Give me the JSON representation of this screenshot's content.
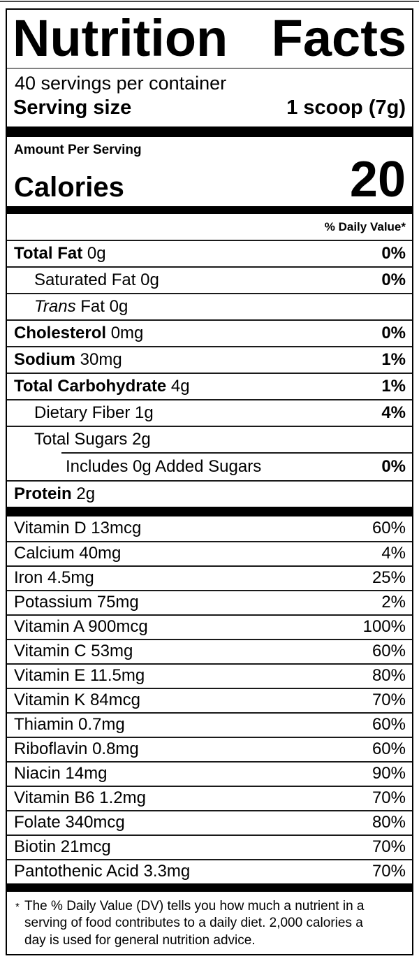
{
  "label": {
    "title": "Nutrition Facts",
    "servings_per_container": "40 servings per container",
    "serving_size": {
      "label": "Serving size",
      "value": "1 scoop (7g)"
    },
    "amount_per_serving": "Amount Per Serving",
    "calories": {
      "label": "Calories",
      "value": "20"
    },
    "daily_value_header": "% Daily Value*",
    "nutrient_rows": [
      {
        "name": "Total Fat",
        "amount": "0g",
        "dv": "0%"
      },
      {
        "name": "Saturated Fat",
        "amount": "0g",
        "dv": "0%"
      },
      {
        "name": "Trans",
        "amount": "Fat 0g",
        "dv": ""
      },
      {
        "name": "Cholesterol",
        "amount": "0mg",
        "dv": "0%"
      },
      {
        "name": "Sodium",
        "amount": "30mg",
        "dv": "1%"
      },
      {
        "name": "Total Carbohydrate",
        "amount": "4g",
        "dv": "1%"
      },
      {
        "name": "Dietary Fiber",
        "amount": "1g",
        "dv": "4%"
      },
      {
        "name": "Total Sugars",
        "amount": "2g",
        "dv": ""
      },
      {
        "name": "Includes 0g Added Sugars",
        "amount": "",
        "dv": "0%"
      },
      {
        "name": "Protein",
        "amount": "2g",
        "dv": ""
      }
    ],
    "vitamin_rows": [
      {
        "name": "Vitamin D",
        "amount": "13mcg",
        "dv": "60%"
      },
      {
        "name": "Calcium",
        "amount": "40mg",
        "dv": "4%"
      },
      {
        "name": "Iron",
        "amount": "4.5mg",
        "dv": "25%"
      },
      {
        "name": "Potassium",
        "amount": "75mg",
        "dv": "2%"
      },
      {
        "name": "Vitamin A",
        "amount": "900mcg",
        "dv": "100%"
      },
      {
        "name": "Vitamin C",
        "amount": "53mg",
        "dv": "60%"
      },
      {
        "name": "Vitamin E",
        "amount": "11.5mg",
        "dv": "80%"
      },
      {
        "name": "Vitamin K",
        "amount": "84mcg",
        "dv": "70%"
      },
      {
        "name": "Thiamin",
        "amount": "0.7mg",
        "dv": "60%"
      },
      {
        "name": "Riboflavin",
        "amount": "0.8mg",
        "dv": "60%"
      },
      {
        "name": "Niacin",
        "amount": "14mg",
        "dv": "90%"
      },
      {
        "name": "Vitamin B6",
        "amount": "1.2mg",
        "dv": "70%"
      },
      {
        "name": "Folate",
        "amount": "340mcg",
        "dv": "80%"
      },
      {
        "name": "Biotin",
        "amount": "21mcg",
        "dv": "70%"
      },
      {
        "name": "Pantothenic Acid",
        "amount": "3.3mg",
        "dv": "70%"
      }
    ],
    "footnote": {
      "asterisk": "*",
      "text": "The % Daily Value (DV) tells you how much a nutrient in a serving of food contributes to a daily diet. 2,000 calories a day is used for general nutrition advice."
    },
    "colors": {
      "text": "#000000",
      "background": "#ffffff",
      "bar": "#000000"
    }
  }
}
